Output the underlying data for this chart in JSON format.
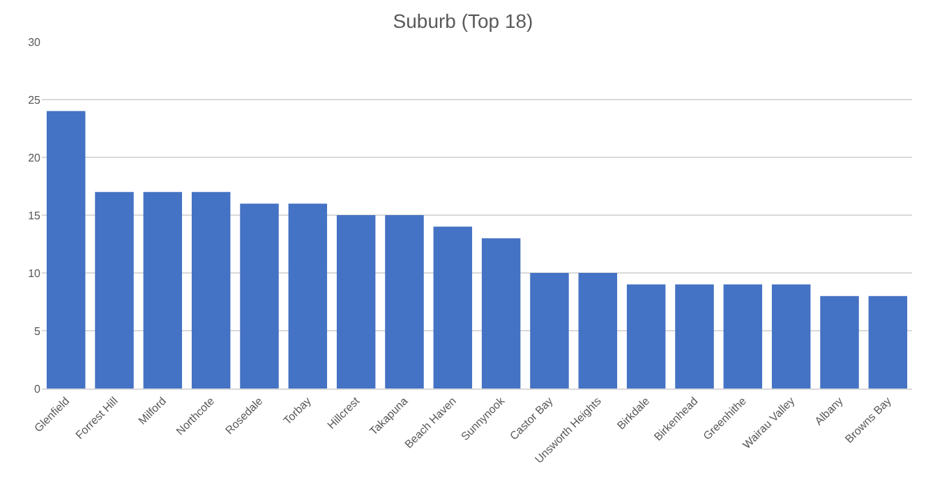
{
  "chart_data": {
    "type": "bar",
    "title": "Suburb (Top 18)",
    "categories": [
      "Glenfield",
      "Forrest Hill",
      "Milford",
      "Northcote",
      "Rosedale",
      "Torbay",
      "Hillcrest",
      "Takapuna",
      "Beach Haven",
      "Sunnynook",
      "Castor Bay",
      "Unsworth Heights",
      "Birkdale",
      "Birkenhead",
      "Greenhithe",
      "Wairau Valley",
      "Albany",
      "Browns Bay"
    ],
    "values": [
      24,
      17,
      17,
      17,
      16,
      16,
      15,
      15,
      14,
      13,
      10,
      10,
      9,
      9,
      9,
      9,
      8,
      8
    ],
    "color": "#4472c4",
    "ylim": [
      0,
      30
    ],
    "yticks": [
      0,
      5,
      10,
      15,
      20,
      25,
      30
    ],
    "grid": "y"
  }
}
